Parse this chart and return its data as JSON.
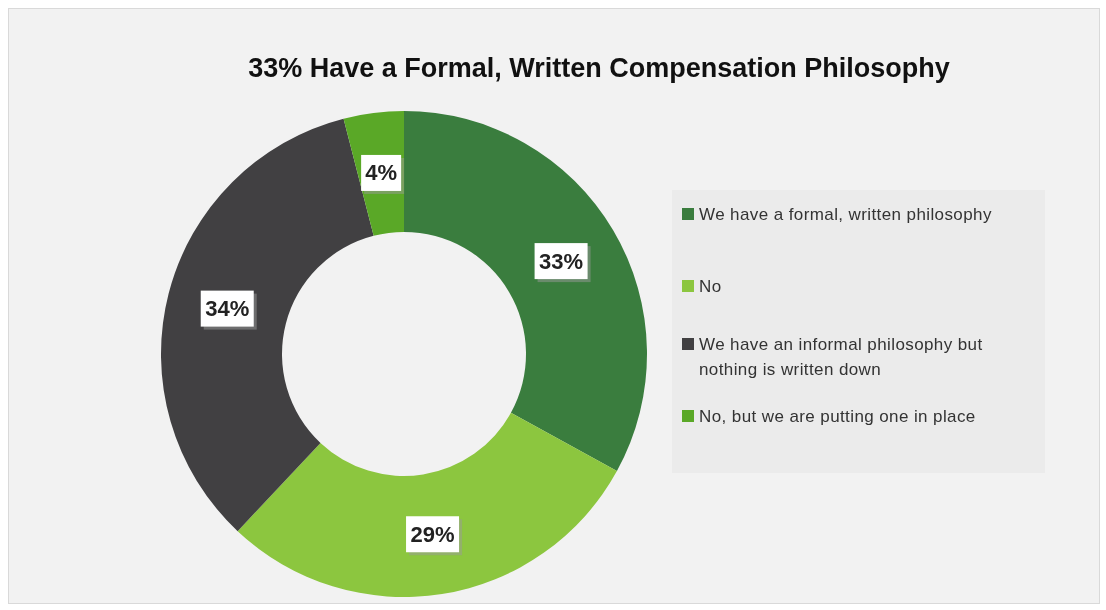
{
  "chart_data": {
    "type": "donut",
    "title": "33% Have a Formal, Written Compensation Philosophy",
    "categories": [
      "We have a formal, written philosophy",
      "No",
      "We have an informal philosophy but nothing is written down",
      "No, but we are putting one in place"
    ],
    "values": [
      33,
      29,
      34,
      4
    ],
    "colors": [
      "#3a7d3e",
      "#8cc63f",
      "#414042",
      "#5aa827"
    ],
    "value_labels": [
      "33%",
      "29%",
      "34%",
      "4%"
    ],
    "legend": "right"
  }
}
